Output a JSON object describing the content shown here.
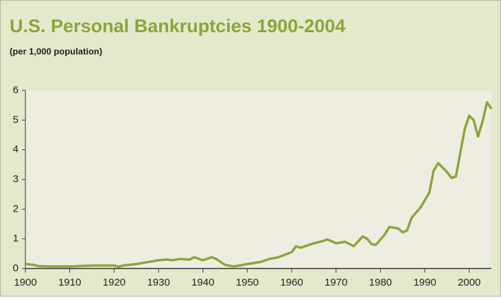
{
  "chart_data": {
    "type": "line",
    "title": "U.S. Personal Bankruptcies 1900-2004",
    "subtitle": "(per 1,000 population)",
    "x": [
      1900,
      1902,
      1903,
      1905,
      1910,
      1915,
      1920,
      1921,
      1922,
      1925,
      1927,
      1930,
      1932,
      1933,
      1935,
      1937,
      1938,
      1940,
      1942,
      1943,
      1945,
      1947,
      1950,
      1953,
      1955,
      1957,
      1960,
      1961,
      1962,
      1965,
      1967,
      1968,
      1970,
      1972,
      1974,
      1976,
      1977,
      1978,
      1979,
      1981,
      1982,
      1984,
      1985,
      1986,
      1987,
      1989,
      1991,
      1992,
      1993,
      1995,
      1996,
      1997,
      1998,
      1999,
      2000,
      2001,
      2002,
      2003,
      2004,
      2005
    ],
    "series": [
      {
        "name": "Bankruptcies",
        "color": "#8ba53a",
        "values": [
          0.15,
          0.12,
          0.08,
          0.07,
          0.07,
          0.1,
          0.1,
          0.06,
          0.1,
          0.15,
          0.2,
          0.28,
          0.3,
          0.28,
          0.32,
          0.3,
          0.38,
          0.28,
          0.38,
          0.32,
          0.12,
          0.07,
          0.15,
          0.22,
          0.32,
          0.38,
          0.55,
          0.75,
          0.7,
          0.85,
          0.92,
          0.98,
          0.85,
          0.9,
          0.75,
          1.08,
          1.0,
          0.82,
          0.8,
          1.15,
          1.4,
          1.35,
          1.22,
          1.28,
          1.7,
          2.05,
          2.55,
          3.3,
          3.55,
          3.25,
          3.05,
          3.1,
          3.9,
          4.7,
          5.15,
          5.0,
          4.45,
          4.95,
          5.6,
          5.38
        ]
      }
    ],
    "xlim": [
      1900,
      2005
    ],
    "ylim": [
      0,
      6
    ],
    "xticks": [
      1900,
      1910,
      1920,
      1930,
      1940,
      1950,
      1960,
      1970,
      1980,
      1990,
      2000
    ],
    "yticks": [
      0,
      1,
      2,
      3,
      4,
      5,
      6
    ]
  }
}
